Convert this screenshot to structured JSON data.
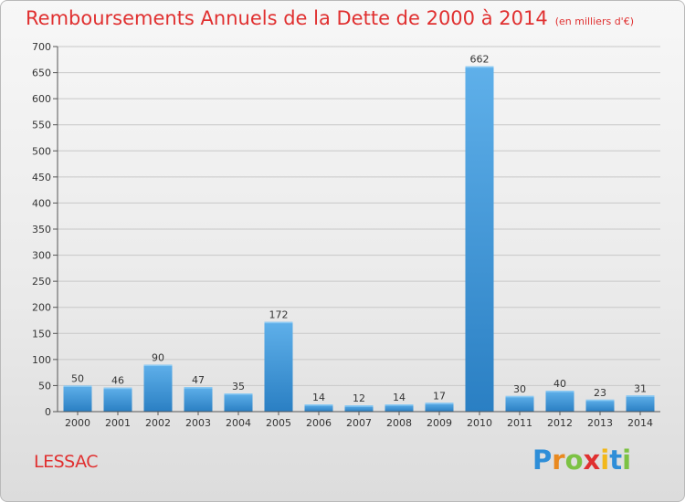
{
  "title": "Remboursements Annuels de la Dette de 2000 à 2014",
  "subtitle": "(en milliers d'€)",
  "commune": "LESSAC",
  "brand": {
    "letters": [
      "P",
      "r",
      "o",
      "x",
      "i",
      "t",
      "i"
    ],
    "colors": [
      "#2e8ed8",
      "#e9891f",
      "#7cc243",
      "#e03030",
      "#f2b81a",
      "#2e8ed8",
      "#7cc243"
    ]
  },
  "colors": {
    "title": "#e03030",
    "bar_light": "#5fb0ea",
    "bar_dark": "#2a7fc3",
    "grid": "#c8c8c8"
  },
  "chart_data": {
    "type": "bar",
    "title": "Remboursements Annuels de la Dette de 2000 à 2014",
    "ylabel": "en milliers d'€",
    "xlabel": "",
    "categories": [
      "2000",
      "2001",
      "2002",
      "2003",
      "2004",
      "2005",
      "2006",
      "2007",
      "2008",
      "2009",
      "2010",
      "2011",
      "2012",
      "2013",
      "2014"
    ],
    "values": [
      50,
      46,
      90,
      47,
      35,
      172,
      14,
      12,
      14,
      17,
      662,
      30,
      40,
      23,
      31
    ],
    "ylim": [
      0,
      700
    ],
    "yticks": [
      0,
      50,
      100,
      150,
      200,
      250,
      300,
      350,
      400,
      450,
      500,
      550,
      600,
      650,
      700
    ],
    "grid": true
  }
}
